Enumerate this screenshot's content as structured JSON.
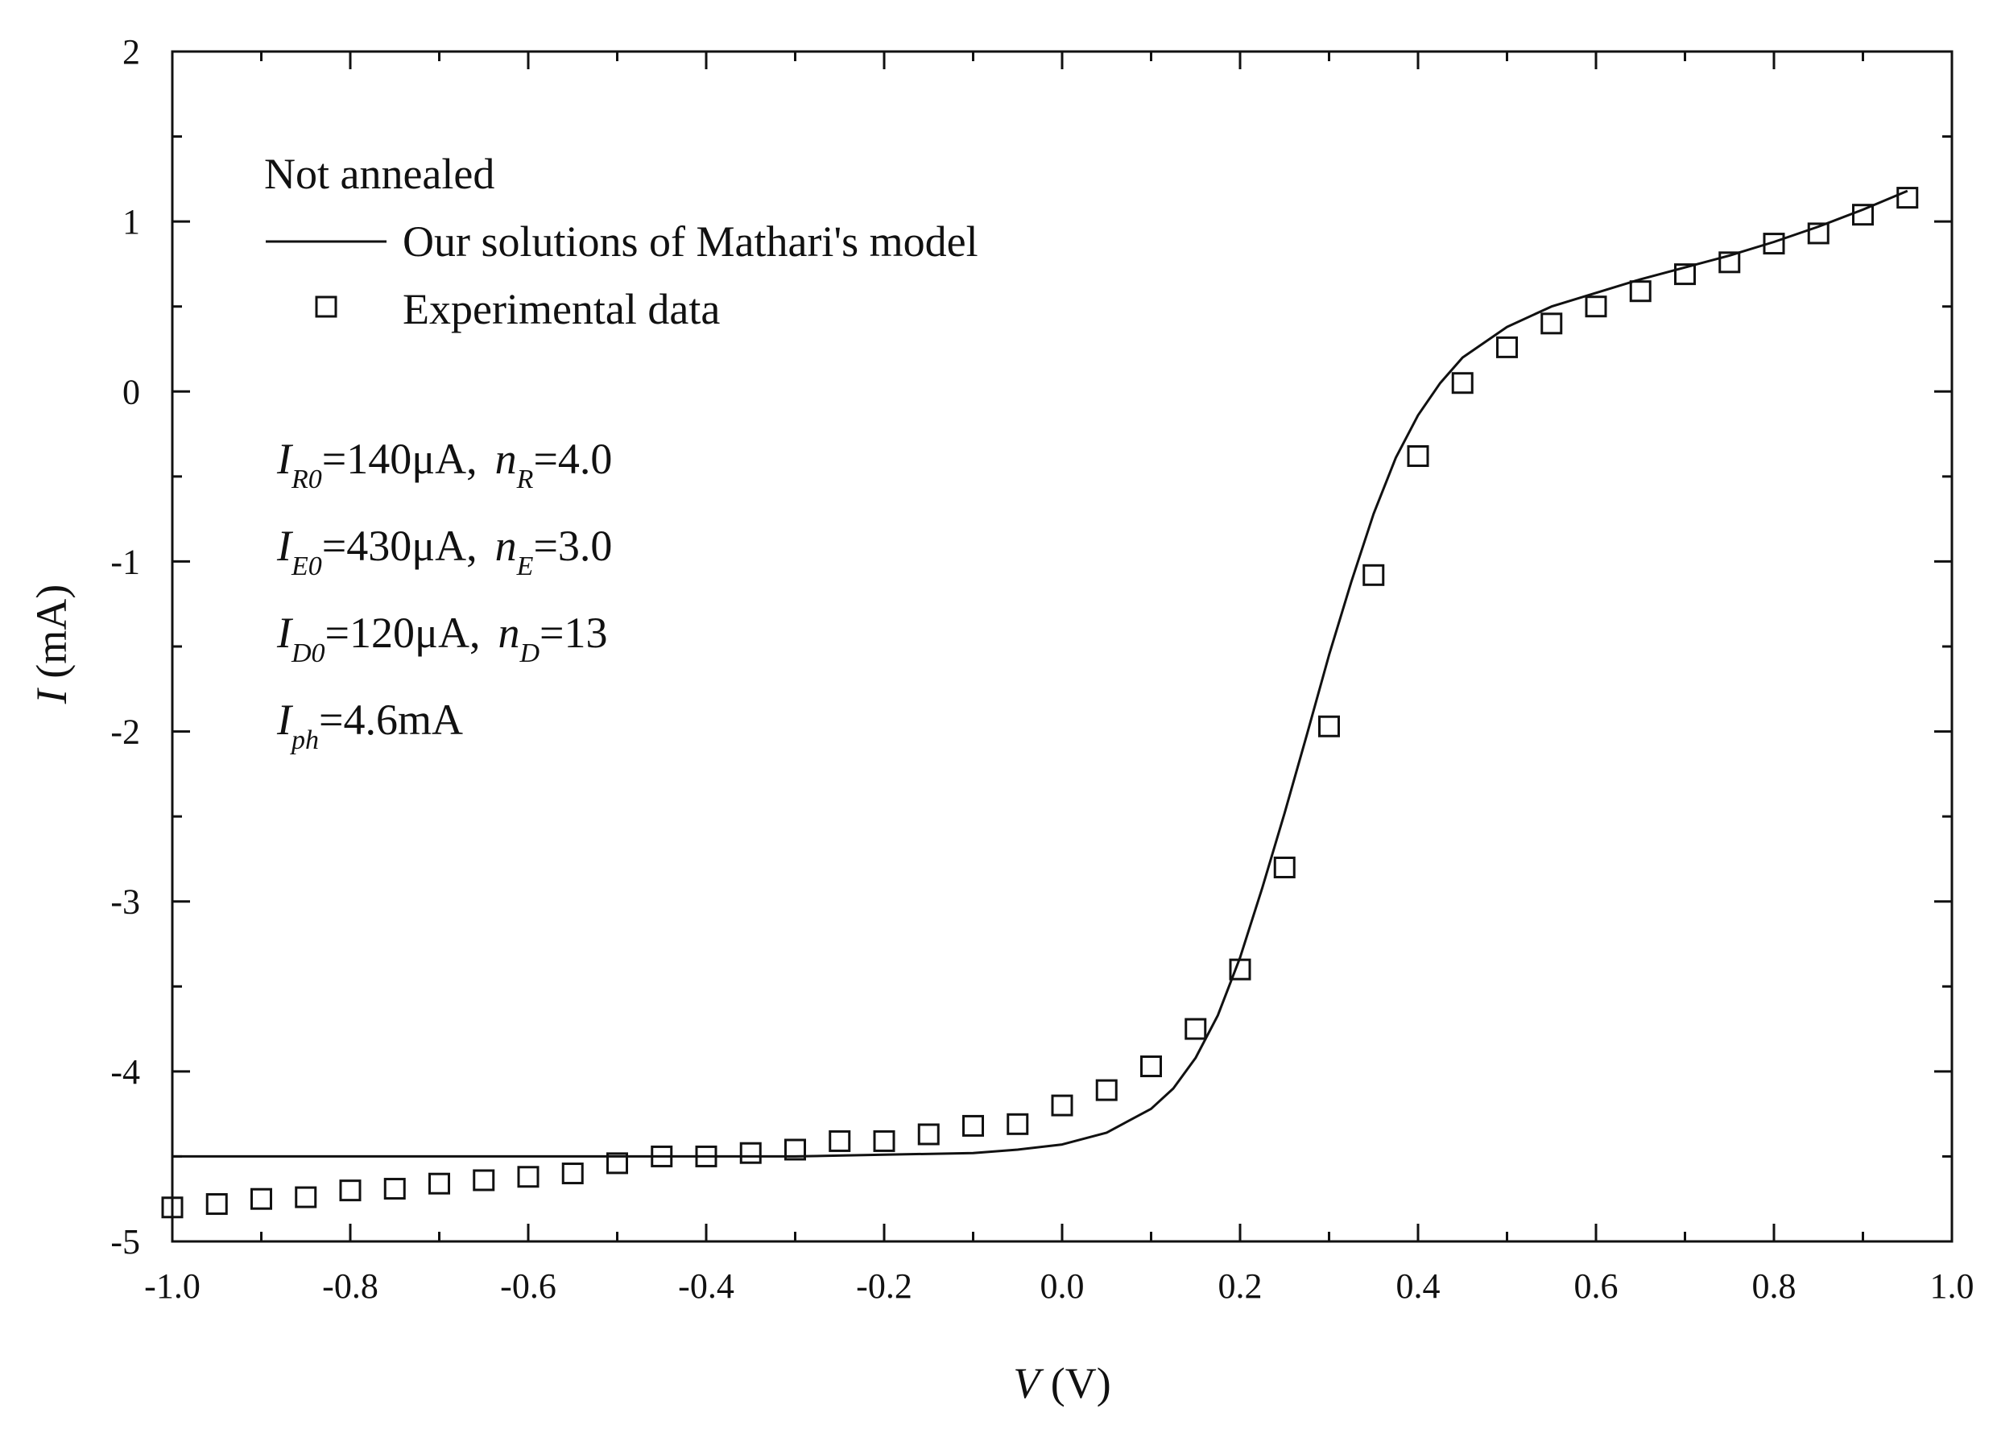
{
  "chart_data": {
    "type": "scatter",
    "title": "",
    "xlabel": {
      "var": "V",
      "unit": " (V)"
    },
    "ylabel": {
      "var": "I",
      "unit": " (mA)"
    },
    "xlim": [
      -1.0,
      1.0
    ],
    "ylim": [
      -5,
      2
    ],
    "xticks": [
      "-1.0",
      "-0.8",
      "-0.6",
      "-0.4",
      "-0.2",
      "0.0",
      "0.2",
      "0.4",
      "0.6",
      "0.8",
      "1.0"
    ],
    "yticks": [
      "2",
      "1",
      "0",
      "-1",
      "-2",
      "-3",
      "-4",
      "-5"
    ],
    "grid": false,
    "legend": {
      "position": "top-left",
      "title": "Not annealed",
      "entries": [
        {
          "label": "Our solutions of Mathari's model",
          "marker": "line"
        },
        {
          "label": "Experimental data",
          "marker": "open-square"
        }
      ]
    },
    "parameters": [
      {
        "sym": "I",
        "sub": "R0",
        "value": "=140μA,",
        "n_sym": "n",
        "n_sub": "R",
        "n_value": "=4.0"
      },
      {
        "sym": "I",
        "sub": "E0",
        "value": "=430μA,",
        "n_sym": "n",
        "n_sub": "E",
        "n_value": "=3.0"
      },
      {
        "sym": "I",
        "sub": "D0",
        "value": "=120μA,",
        "n_sym": "n",
        "n_sub": "D",
        "n_value": "=13"
      },
      {
        "sym": "I",
        "sub": "ph",
        "value": "=4.6mA"
      }
    ],
    "series": [
      {
        "name": "Our solutions of Mathari's model",
        "style": "line",
        "x": [
          -1.0,
          -0.8,
          -0.6,
          -0.4,
          -0.3,
          -0.2,
          -0.1,
          -0.05,
          0.0,
          0.05,
          0.1,
          0.125,
          0.15,
          0.175,
          0.2,
          0.225,
          0.25,
          0.275,
          0.3,
          0.325,
          0.35,
          0.375,
          0.4,
          0.425,
          0.45,
          0.5,
          0.55,
          0.6,
          0.65,
          0.7,
          0.75,
          0.8,
          0.85,
          0.9,
          0.95
        ],
        "y": [
          -4.5,
          -4.5,
          -4.5,
          -4.5,
          -4.5,
          -4.49,
          -4.48,
          -4.46,
          -4.43,
          -4.36,
          -4.22,
          -4.1,
          -3.92,
          -3.67,
          -3.33,
          -2.92,
          -2.48,
          -2.02,
          -1.55,
          -1.12,
          -0.72,
          -0.39,
          -0.14,
          0.05,
          0.2,
          0.38,
          0.5,
          0.58,
          0.66,
          0.73,
          0.8,
          0.88,
          0.97,
          1.07,
          1.18
        ]
      },
      {
        "name": "Experimental data",
        "style": "open-square",
        "x": [
          -1.0,
          -0.95,
          -0.9,
          -0.85,
          -0.8,
          -0.75,
          -0.7,
          -0.65,
          -0.6,
          -0.55,
          -0.5,
          -0.45,
          -0.4,
          -0.35,
          -0.3,
          -0.25,
          -0.2,
          -0.15,
          -0.1,
          -0.05,
          0.0,
          0.05,
          0.1,
          0.15,
          0.2,
          0.25,
          0.3,
          0.35,
          0.4,
          0.45,
          0.5,
          0.55,
          0.6,
          0.65,
          0.7,
          0.75,
          0.8,
          0.85,
          0.9,
          0.95
        ],
        "y": [
          -4.8,
          -4.78,
          -4.75,
          -4.74,
          -4.7,
          -4.69,
          -4.66,
          -4.64,
          -4.62,
          -4.6,
          -4.54,
          -4.5,
          -4.5,
          -4.48,
          -4.46,
          -4.41,
          -4.41,
          -4.37,
          -4.32,
          -4.31,
          -4.2,
          -4.11,
          -3.97,
          -3.75,
          -3.4,
          -2.8,
          -1.97,
          -1.08,
          -0.38,
          0.05,
          0.26,
          0.4,
          0.5,
          0.59,
          0.69,
          0.76,
          0.87,
          0.93,
          1.04,
          1.14
        ]
      }
    ]
  }
}
